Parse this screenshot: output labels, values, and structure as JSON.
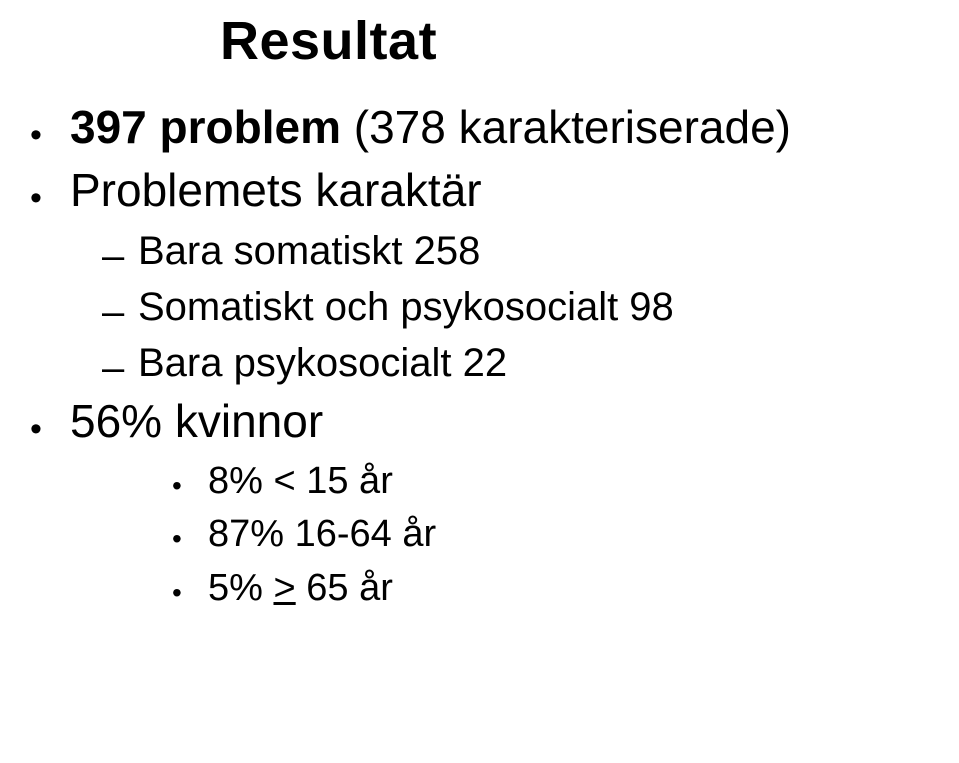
{
  "title": "Resultat",
  "level1": {
    "item1_bold": "397 problem",
    "item1_rest": "  (378 karakteriserade)",
    "item2": "Problemets karaktär",
    "item3": "56% kvinnor"
  },
  "level2": {
    "item1": "Bara somatiskt 258",
    "item2": "Somatiskt och psykosocialt 98",
    "item3": "Bara psykosocialt 22"
  },
  "level3": {
    "item1": "8% < 15 år",
    "item2": "87% 16-64 år",
    "item3_prefix": "5% ",
    "item3_ge": ">",
    "item3_suffix": " 65 år"
  }
}
